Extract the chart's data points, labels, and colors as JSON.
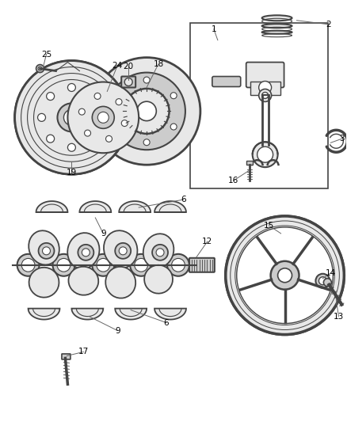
{
  "bg_color": "#ffffff",
  "lc": "#444444",
  "fc_light": "#e8e8e8",
  "fc_mid": "#cccccc",
  "fc_dark": "#aaaaaa",
  "figsize": [
    4.38,
    5.33
  ],
  "dpi": 100
}
